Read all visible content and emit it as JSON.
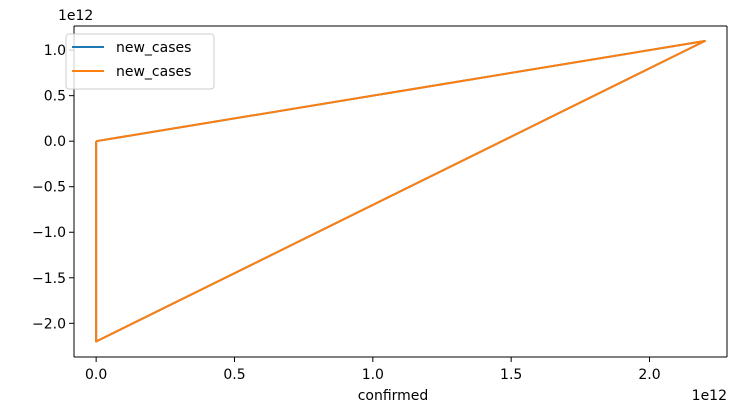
{
  "chart_data": {
    "type": "line",
    "xlabel": "confirmed",
    "ylabel": "",
    "x_offset_label": "1e12",
    "y_offset_label": "1e12",
    "x_scale": 1000000000000.0,
    "y_scale": 1000000000000.0,
    "xlim": [
      -0.08,
      2.28
    ],
    "ylim": [
      -2.37,
      1.265
    ],
    "xticks": [
      0.0,
      0.5,
      1.0,
      1.5,
      2.0
    ],
    "xtick_labels": [
      "0.0",
      "0.5",
      "1.0",
      "1.5",
      "2.0"
    ],
    "yticks": [
      1.0,
      0.5,
      0.0,
      -0.5,
      -1.0,
      -1.5,
      -2.0
    ],
    "ytick_labels": [
      "1.0",
      "0.5",
      "0.0",
      "−0.5",
      "−1.0",
      "−1.5",
      "−2.0"
    ],
    "grid": false,
    "legend_position": "upper-left",
    "series": [
      {
        "name": "new_cases",
        "color": "#1f77b4",
        "x": [
          0.0,
          0.0,
          2.2,
          0.0,
          0.0
        ],
        "y": [
          0.0,
          -2.2,
          1.1,
          0.0,
          0.0
        ]
      },
      {
        "name": "new_cases",
        "color": "#ff7f0e",
        "x": [
          0.0,
          0.0,
          2.2,
          0.0,
          0.0
        ],
        "y": [
          0.0,
          -2.2,
          1.1,
          0.0,
          0.0
        ]
      }
    ]
  }
}
